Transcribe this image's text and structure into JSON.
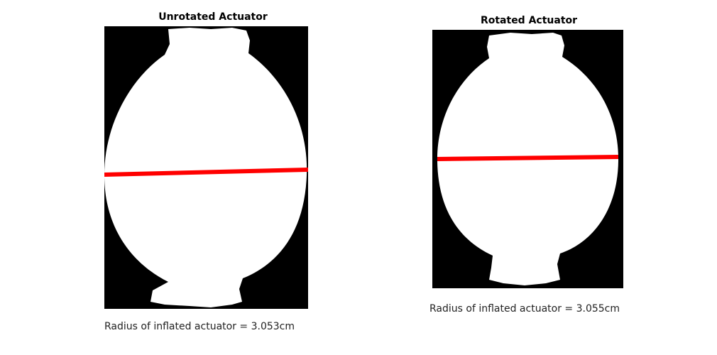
{
  "panels": [
    {
      "title": "Unrotated Actuator",
      "caption": "Radius of inflated actuator = 3.053cm",
      "colors": {
        "background": "#000000",
        "silhouette": "#ffffff",
        "measure_line": "#ff0000"
      }
    },
    {
      "title": "Rotated Actuator",
      "caption": "Radius of inflated actuator = 3.055cm",
      "colors": {
        "background": "#000000",
        "silhouette": "#ffffff",
        "measure_line": "#ff0000"
      }
    }
  ]
}
